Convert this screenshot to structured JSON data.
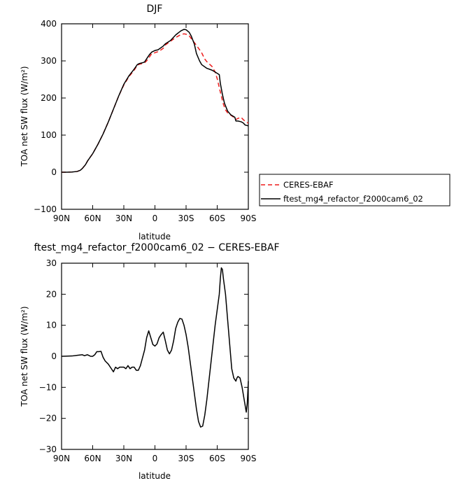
{
  "chart_data": [
    {
      "type": "line",
      "title": "DJF",
      "xlabel": "latitude",
      "ylabel": "TOA net SW flux (W/m²)",
      "ylim": [
        -100,
        400
      ],
      "xlim": [
        90,
        -90
      ],
      "x_ticks": [
        90,
        60,
        30,
        0,
        -30,
        -60,
        -90
      ],
      "x_tick_labels": [
        "90N",
        "60N",
        "30N",
        "0",
        "30S",
        "60S",
        "90S"
      ],
      "y_ticks": [
        -100,
        0,
        100,
        200,
        300,
        400
      ],
      "y_tick_labels": [
        "−100",
        "0",
        "100",
        "200",
        "300",
        "400"
      ],
      "grid": false,
      "legend_position": "right",
      "series": [
        {
          "name": "CERES-EBAF",
          "color": "#ee1c1c",
          "dash": true,
          "points": [
            [
              90,
              0
            ],
            [
              85,
              0
            ],
            [
              80,
              0.5
            ],
            [
              75,
              2
            ],
            [
              72,
              5
            ],
            [
              70,
              10
            ],
            [
              67,
              20
            ],
            [
              65,
              30
            ],
            [
              60,
              50
            ],
            [
              55,
              75
            ],
            [
              50,
              103
            ],
            [
              45,
              135
            ],
            [
              40,
              170
            ],
            [
              35,
              205
            ],
            [
              30,
              235
            ],
            [
              25,
              258
            ],
            [
              20,
              275
            ],
            [
              17,
              288
            ],
            [
              15,
              291
            ],
            [
              12,
              293
            ],
            [
              10,
              295
            ],
            [
              8,
              300
            ],
            [
              5,
              312
            ],
            [
              3,
              320
            ],
            [
              0,
              322
            ],
            [
              -3,
              325
            ],
            [
              -5,
              328
            ],
            [
              -8,
              334
            ],
            [
              -10,
              343
            ],
            [
              -15,
              353
            ],
            [
              -20,
              363
            ],
            [
              -25,
              371
            ],
            [
              -28,
              373
            ],
            [
              -30,
              372
            ],
            [
              -33,
              368
            ],
            [
              -35,
              360
            ],
            [
              -40,
              342
            ],
            [
              -45,
              322
            ],
            [
              -48,
              305
            ],
            [
              -50,
              298
            ],
            [
              -55,
              285
            ],
            [
              -58,
              270
            ],
            [
              -60,
              252
            ],
            [
              -62,
              228
            ],
            [
              -64,
              205
            ],
            [
              -66,
              183
            ],
            [
              -68,
              168
            ],
            [
              -70,
              160
            ],
            [
              -75,
              150
            ],
            [
              -78,
              142
            ],
            [
              -80,
              145
            ],
            [
              -83,
              148
            ],
            [
              -85,
              142
            ],
            [
              -87,
              137
            ],
            [
              -90,
              132
            ]
          ]
        },
        {
          "name": "ftest_mg4_refactor_f2000cam6_02",
          "color": "#000000",
          "dash": false,
          "points": [
            [
              90,
              0
            ],
            [
              85,
              0
            ],
            [
              80,
              0.5
            ],
            [
              75,
              2
            ],
            [
              72,
              5
            ],
            [
              70,
              10
            ],
            [
              67,
              20
            ],
            [
              65,
              30
            ],
            [
              60,
              50
            ],
            [
              55,
              75
            ],
            [
              50,
              103
            ],
            [
              45,
              135
            ],
            [
              40,
              170
            ],
            [
              35,
              205
            ],
            [
              30,
              237
            ],
            [
              25,
              260
            ],
            [
              20,
              278
            ],
            [
              17,
              290
            ],
            [
              15,
              293
            ],
            [
              12,
              295
            ],
            [
              10,
              297
            ],
            [
              7,
              310
            ],
            [
              5,
              318
            ],
            [
              3,
              324
            ],
            [
              0,
              328
            ],
            [
              -3,
              330
            ],
            [
              -5,
              334
            ],
            [
              -8,
              340
            ],
            [
              -10,
              346
            ],
            [
              -15,
              355
            ],
            [
              -20,
              370
            ],
            [
              -25,
              381
            ],
            [
              -28,
              385
            ],
            [
              -30,
              384
            ],
            [
              -33,
              377
            ],
            [
              -35,
              367
            ],
            [
              -38,
              345
            ],
            [
              -40,
              320
            ],
            [
              -43,
              300
            ],
            [
              -45,
              290
            ],
            [
              -50,
              280
            ],
            [
              -55,
              275
            ],
            [
              -58,
              270
            ],
            [
              -62,
              263
            ],
            [
              -63,
              240
            ],
            [
              -65,
              210
            ],
            [
              -67,
              186
            ],
            [
              -70,
              165
            ],
            [
              -73,
              155
            ],
            [
              -77,
              148
            ],
            [
              -78,
              138
            ],
            [
              -80,
              138
            ],
            [
              -83,
              136
            ],
            [
              -85,
              133
            ],
            [
              -87,
              127
            ],
            [
              -90,
              125
            ]
          ]
        }
      ]
    },
    {
      "type": "line",
      "title": "ftest_mg4_refactor_f2000cam6_02 − CERES-EBAF",
      "xlabel": "latitude",
      "ylabel": "TOA net SW flux (W/m²)",
      "ylim": [
        -30,
        30
      ],
      "xlim": [
        90,
        -90
      ],
      "x_ticks": [
        90,
        60,
        30,
        0,
        -30,
        -60,
        -90
      ],
      "x_tick_labels": [
        "90N",
        "60N",
        "30N",
        "0",
        "30S",
        "60S",
        "90S"
      ],
      "y_ticks": [
        -30,
        -20,
        -10,
        0,
        10,
        20,
        30
      ],
      "y_tick_labels": [
        "−30",
        "−20",
        "−10",
        "0",
        "10",
        "20",
        "30"
      ],
      "grid": false,
      "series": [
        {
          "color": "#000000",
          "dash": false,
          "points": [
            [
              90,
              0
            ],
            [
              80,
              0.1
            ],
            [
              75,
              0.3
            ],
            [
              70,
              0.5
            ],
            [
              68,
              0.2
            ],
            [
              65,
              0.5
            ],
            [
              62,
              0
            ],
            [
              60,
              0
            ],
            [
              58,
              0.5
            ],
            [
              56,
              1.5
            ],
            [
              54,
              1.5
            ],
            [
              52,
              1.6
            ],
            [
              50,
              -0.3
            ],
            [
              48,
              -1.5
            ],
            [
              45,
              -2.5
            ],
            [
              42,
              -4
            ],
            [
              40,
              -5
            ],
            [
              38,
              -3.5
            ],
            [
              36,
              -4
            ],
            [
              34,
              -3.5
            ],
            [
              32,
              -3.5
            ],
            [
              30,
              -3.5
            ],
            [
              28,
              -4
            ],
            [
              26,
              -3
            ],
            [
              24,
              -4
            ],
            [
              22,
              -3.5
            ],
            [
              20,
              -3.5
            ],
            [
              18,
              -4.5
            ],
            [
              16,
              -4.5
            ],
            [
              14,
              -3
            ],
            [
              12,
              -0.5
            ],
            [
              10,
              2
            ],
            [
              8,
              6
            ],
            [
              6,
              8.2
            ],
            [
              4,
              6
            ],
            [
              2,
              3.8
            ],
            [
              0,
              3.3
            ],
            [
              -2,
              4
            ],
            [
              -4,
              6
            ],
            [
              -6,
              7
            ],
            [
              -8,
              7.8
            ],
            [
              -10,
              5
            ],
            [
              -12,
              2
            ],
            [
              -14,
              0.8
            ],
            [
              -16,
              2
            ],
            [
              -18,
              5
            ],
            [
              -20,
              9
            ],
            [
              -22,
              11
            ],
            [
              -24,
              12.2
            ],
            [
              -26,
              12
            ],
            [
              -28,
              10
            ],
            [
              -30,
              7
            ],
            [
              -32,
              3
            ],
            [
              -34,
              -2
            ],
            [
              -36,
              -7
            ],
            [
              -38,
              -12
            ],
            [
              -40,
              -17
            ],
            [
              -42,
              -21
            ],
            [
              -44,
              -22.8
            ],
            [
              -46,
              -22.5
            ],
            [
              -48,
              -19
            ],
            [
              -50,
              -14
            ],
            [
              -52,
              -8
            ],
            [
              -54,
              -2
            ],
            [
              -56,
              4
            ],
            [
              -58,
              10
            ],
            [
              -60,
              15
            ],
            [
              -62,
              20
            ],
            [
              -63,
              25
            ],
            [
              -64,
              28.5
            ],
            [
              -65,
              28
            ],
            [
              -66,
              25
            ],
            [
              -68,
              20
            ],
            [
              -70,
              12
            ],
            [
              -72,
              4
            ],
            [
              -74,
              -4
            ],
            [
              -76,
              -7
            ],
            [
              -78,
              -8
            ],
            [
              -79,
              -7
            ],
            [
              -80,
              -6.5
            ],
            [
              -82,
              -7
            ],
            [
              -84,
              -10
            ],
            [
              -86,
              -14
            ],
            [
              -88,
              -18
            ],
            [
              -89,
              -15
            ],
            [
              -90,
              -8
            ]
          ]
        }
      ]
    }
  ]
}
